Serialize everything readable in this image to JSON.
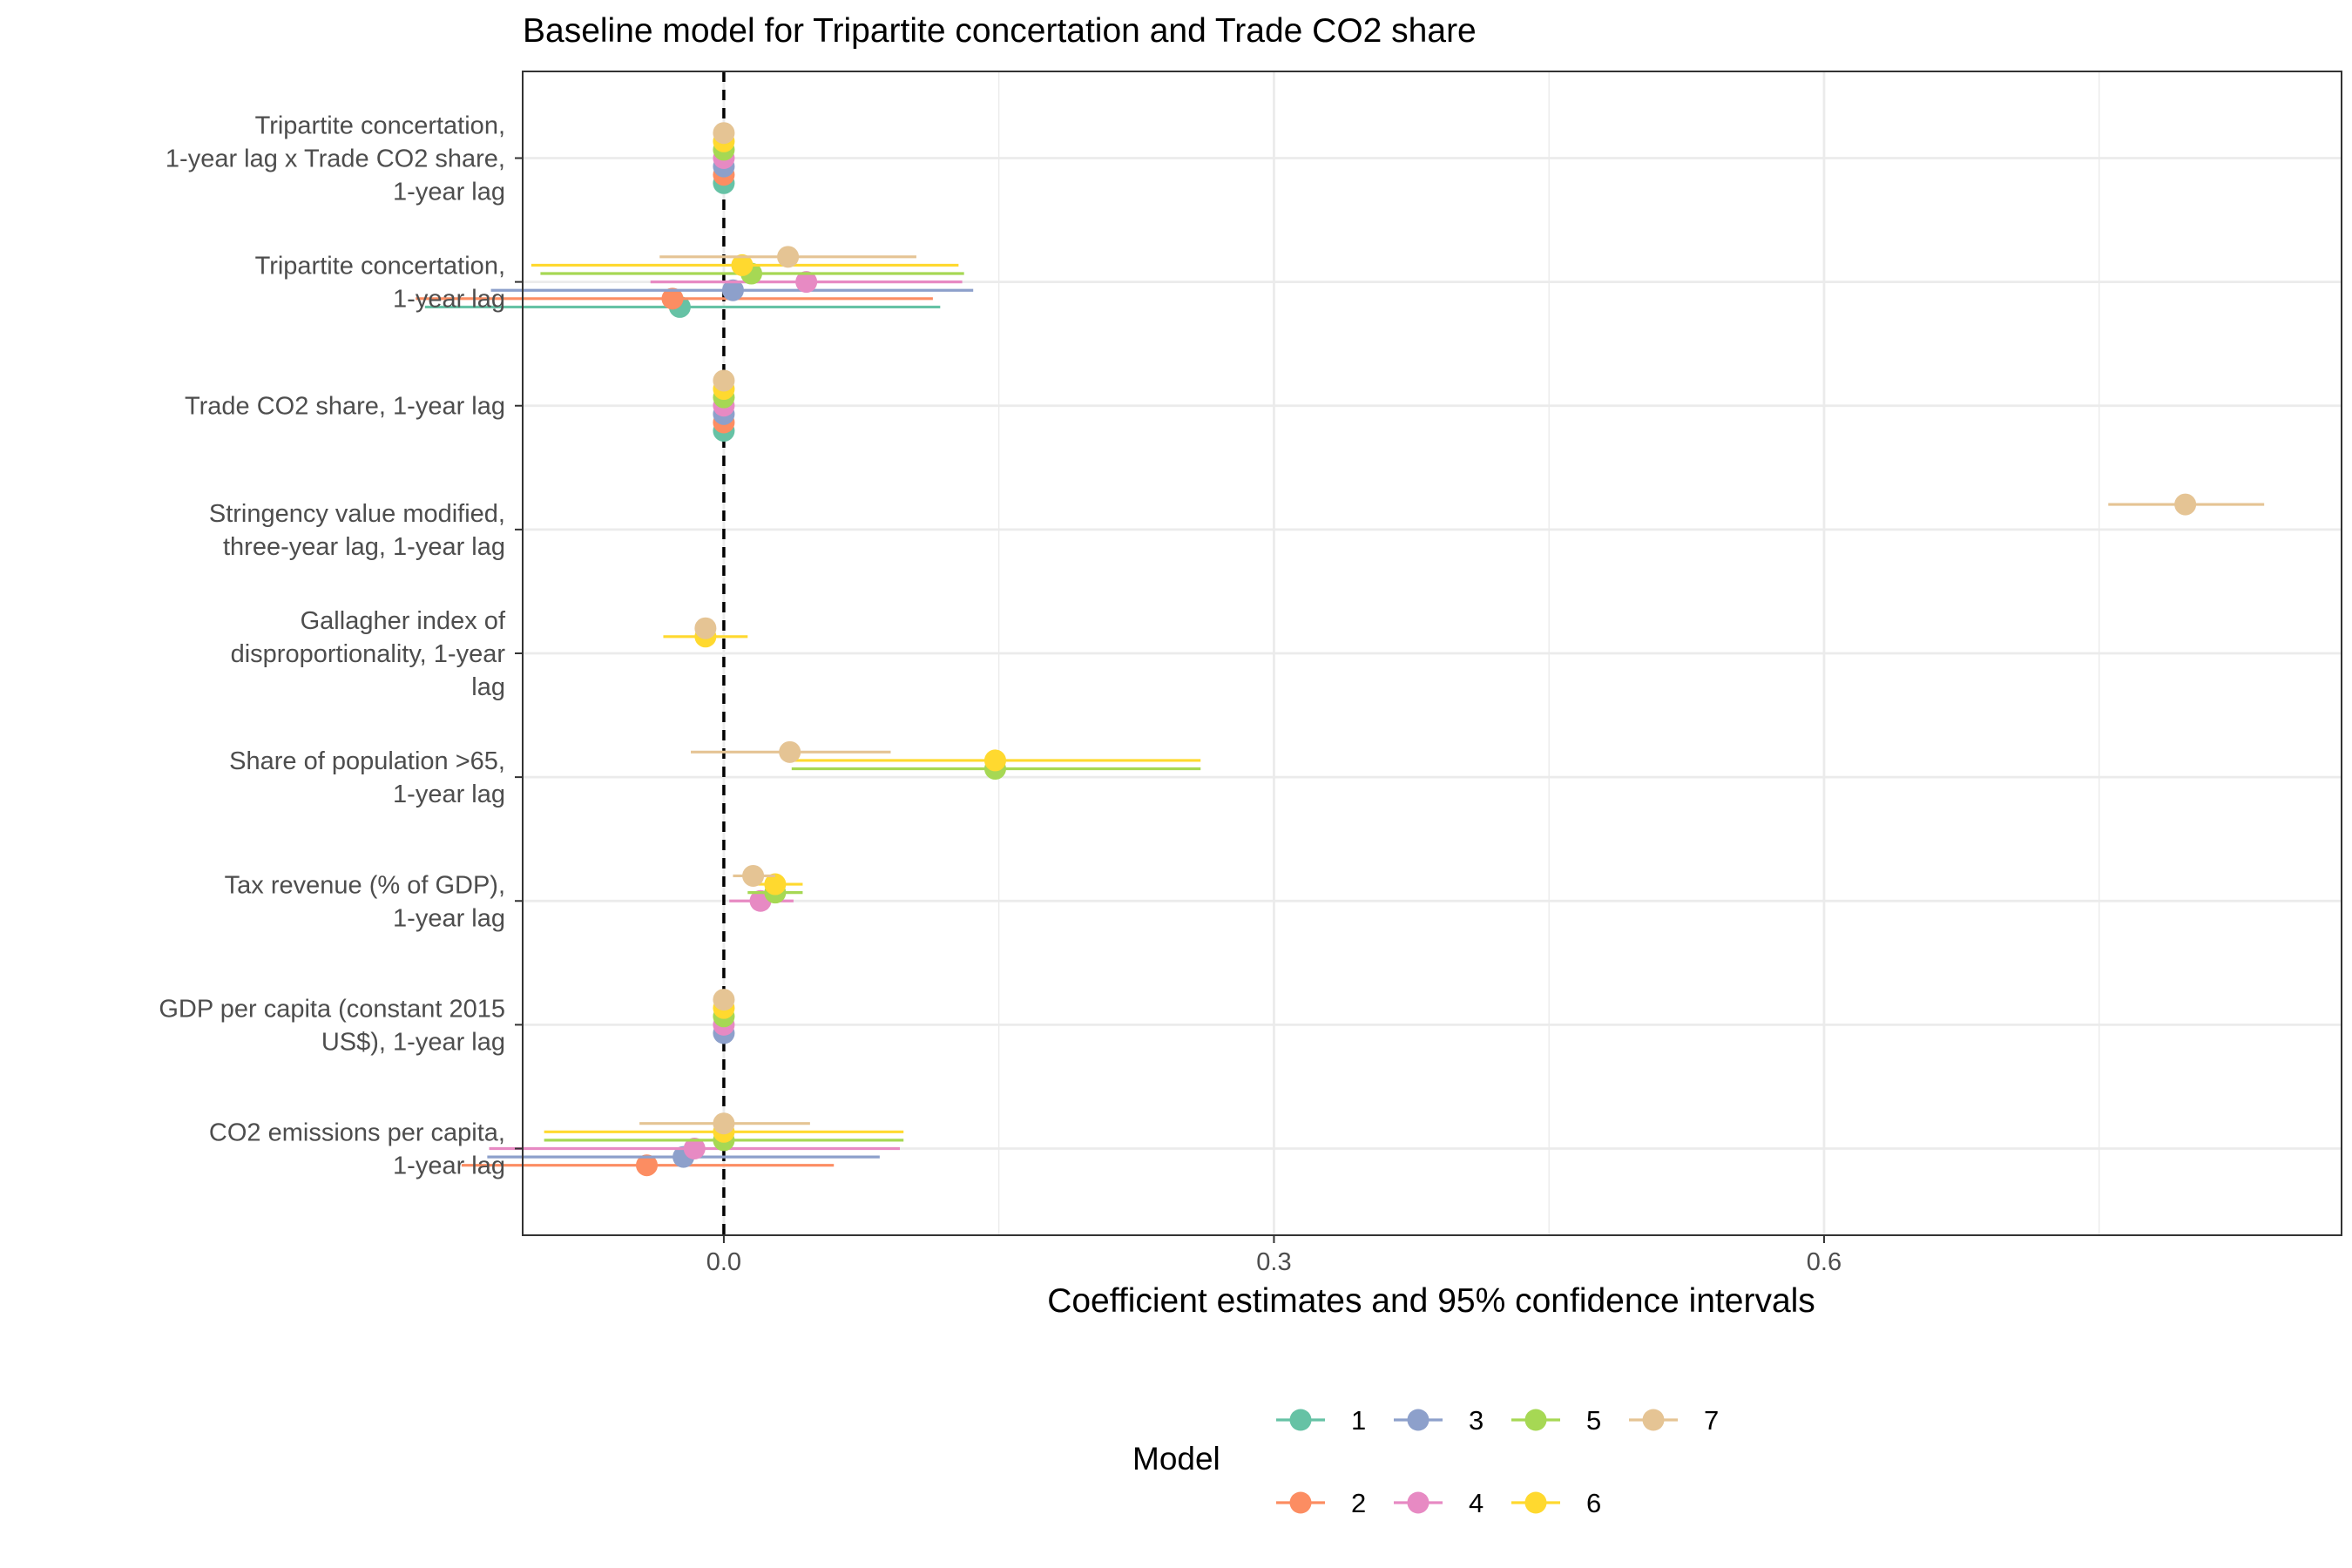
{
  "chart_data": {
    "type": "scatter",
    "title": "Baseline model for Tripartite concertation and Trade CO2 share",
    "xlabel": "Coefficient estimates and 95% confidence intervals",
    "ylabel": "",
    "xlim": [
      -0.1097,
      0.8822
    ],
    "xticks": [
      0.0,
      0.3,
      0.6
    ],
    "xtick_labels": [
      "0.0",
      "0.3",
      "0.6"
    ],
    "grid": true,
    "reference_line": 0,
    "legend": {
      "title": "Model",
      "placement": "bottom",
      "labels": [
        "1",
        "2",
        "3",
        "4",
        "5",
        "6",
        "7"
      ]
    },
    "variables": [
      "Tripartite concertation,\n1-year lag x Trade CO2 share,\n1-year lag",
      "Tripartite concertation,\n1-year lag",
      "Trade CO2 share, 1-year lag",
      "Stringency value modified,\nthree-year lag, 1-year lag",
      "Gallagher index of\ndisproportionality, 1-year\nlag",
      "Share of population >65,\n1-year lag",
      "Tax revenue (% of GDP),\n1-year lag",
      "GDP per capita (constant 2015\nUS$), 1-year lag",
      "CO2 emissions per capita,\n1-year lag"
    ],
    "series": [
      {
        "name": "1",
        "color": "#66C2A5",
        "points": [
          {
            "var": 0,
            "est": 0.0,
            "lo": 0.0,
            "hi": 0.0
          },
          {
            "var": 1,
            "est": -0.024,
            "lo": -0.163,
            "hi": 0.118
          },
          {
            "var": 2,
            "est": 0.0,
            "lo": 0.0,
            "hi": 0.0
          }
        ]
      },
      {
        "name": "2",
        "color": "#FC8D62",
        "points": [
          {
            "var": 0,
            "est": 0.0,
            "lo": 0.0,
            "hi": 0.0
          },
          {
            "var": 1,
            "est": -0.028,
            "lo": -0.168,
            "hi": 0.114
          },
          {
            "var": 2,
            "est": 0.0,
            "lo": 0.0,
            "hi": 0.0
          },
          {
            "var": 8,
            "est": -0.042,
            "lo": -0.143,
            "hi": 0.06
          }
        ]
      },
      {
        "name": "3",
        "color": "#8DA0CB",
        "points": [
          {
            "var": 0,
            "est": 0.0,
            "lo": 0.0,
            "hi": 0.0
          },
          {
            "var": 1,
            "est": 0.005,
            "lo": -0.127,
            "hi": 0.136
          },
          {
            "var": 2,
            "est": 0.0,
            "lo": 0.0,
            "hi": 0.0
          },
          {
            "var": 7,
            "est": 0.0,
            "lo": 0.0,
            "hi": 0.0
          },
          {
            "var": 8,
            "est": -0.022,
            "lo": -0.129,
            "hi": 0.085
          }
        ]
      },
      {
        "name": "4",
        "color": "#E78AC3",
        "points": [
          {
            "var": 0,
            "est": 0.0,
            "lo": 0.0,
            "hi": 0.0
          },
          {
            "var": 1,
            "est": 0.045,
            "lo": -0.04,
            "hi": 0.13
          },
          {
            "var": 2,
            "est": 0.0,
            "lo": 0.0,
            "hi": 0.0
          },
          {
            "var": 6,
            "est": 0.02,
            "lo": 0.003,
            "hi": 0.038
          },
          {
            "var": 7,
            "est": 0.0,
            "lo": 0.0,
            "hi": 0.0
          },
          {
            "var": 8,
            "est": -0.016,
            "lo": -0.128,
            "hi": 0.096
          }
        ]
      },
      {
        "name": "5",
        "color": "#A6D854",
        "points": [
          {
            "var": 0,
            "est": 0.0,
            "lo": 0.0,
            "hi": 0.0
          },
          {
            "var": 1,
            "est": 0.015,
            "lo": -0.1,
            "hi": 0.131
          },
          {
            "var": 2,
            "est": 0.0,
            "lo": 0.0,
            "hi": 0.0
          },
          {
            "var": 5,
            "est": 0.148,
            "lo": 0.037,
            "hi": 0.26
          },
          {
            "var": 6,
            "est": 0.028,
            "lo": 0.013,
            "hi": 0.043
          },
          {
            "var": 7,
            "est": 0.0,
            "lo": 0.0,
            "hi": 0.0
          },
          {
            "var": 8,
            "est": 0.0,
            "lo": -0.098,
            "hi": 0.098
          }
        ]
      },
      {
        "name": "6",
        "color": "#FFD92F",
        "points": [
          {
            "var": 0,
            "est": 0.0,
            "lo": 0.0,
            "hi": 0.0
          },
          {
            "var": 1,
            "est": 0.01,
            "lo": -0.105,
            "hi": 0.128
          },
          {
            "var": 2,
            "est": 0.0,
            "lo": 0.0,
            "hi": 0.0
          },
          {
            "var": 4,
            "est": -0.01,
            "lo": -0.033,
            "hi": 0.013
          },
          {
            "var": 5,
            "est": 0.148,
            "lo": 0.037,
            "hi": 0.26
          },
          {
            "var": 6,
            "est": 0.028,
            "lo": 0.014,
            "hi": 0.043
          },
          {
            "var": 7,
            "est": 0.0,
            "lo": 0.0,
            "hi": 0.0
          },
          {
            "var": 8,
            "est": 0.0,
            "lo": -0.098,
            "hi": 0.098
          }
        ]
      },
      {
        "name": "7",
        "color": "#E5C494",
        "points": [
          {
            "var": 0,
            "est": 0.0,
            "lo": 0.0,
            "hi": 0.0
          },
          {
            "var": 1,
            "est": 0.035,
            "lo": -0.035,
            "hi": 0.105
          },
          {
            "var": 2,
            "est": 0.0,
            "lo": 0.0,
            "hi": 0.0
          },
          {
            "var": 3,
            "est": 0.797,
            "lo": 0.755,
            "hi": 0.84
          },
          {
            "var": 4,
            "est": -0.01,
            "lo": -0.014,
            "hi": -0.006
          },
          {
            "var": 5,
            "est": 0.036,
            "lo": -0.018,
            "hi": 0.091
          },
          {
            "var": 6,
            "est": 0.016,
            "lo": 0.005,
            "hi": 0.028
          },
          {
            "var": 7,
            "est": 0.0,
            "lo": 0.0,
            "hi": 0.0
          },
          {
            "var": 8,
            "est": 0.0,
            "lo": -0.046,
            "hi": 0.047
          }
        ]
      }
    ]
  }
}
